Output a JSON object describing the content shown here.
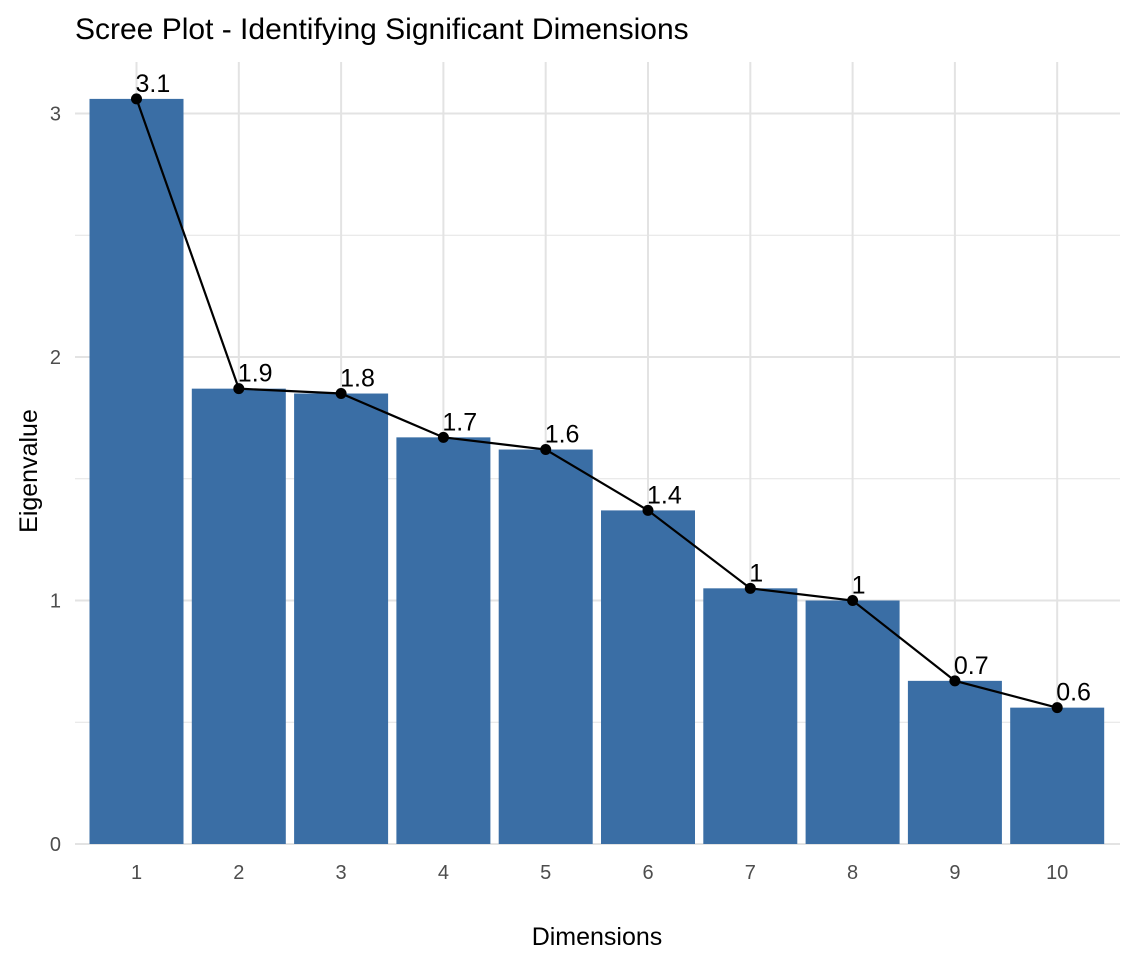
{
  "chart_data": {
    "type": "bar",
    "title": "Scree Plot - Identifying Significant Dimensions",
    "xlabel": "Dimensions",
    "ylabel": "Eigenvalue",
    "categories": [
      "1",
      "2",
      "3",
      "4",
      "5",
      "6",
      "7",
      "8",
      "9",
      "10"
    ],
    "values": [
      3.06,
      1.87,
      1.85,
      1.67,
      1.62,
      1.37,
      1.05,
      1.0,
      0.67,
      0.56
    ],
    "data_labels": [
      "3.1",
      "1.9",
      "1.8",
      "1.7",
      "1.6",
      "1.4",
      "1",
      "1",
      "0.7",
      "0.6"
    ],
    "overlay": "line-with-points",
    "ylim": [
      0,
      3.2
    ],
    "yticks": [
      "0",
      "1",
      "2",
      "3"
    ],
    "ytick_values": [
      0,
      1,
      2,
      3
    ],
    "grid": true,
    "legend": "none",
    "colors": {
      "bar": "#3a6ea5",
      "line": "#000000",
      "grid": "#e3e3e3",
      "background": "#ffffff"
    }
  }
}
